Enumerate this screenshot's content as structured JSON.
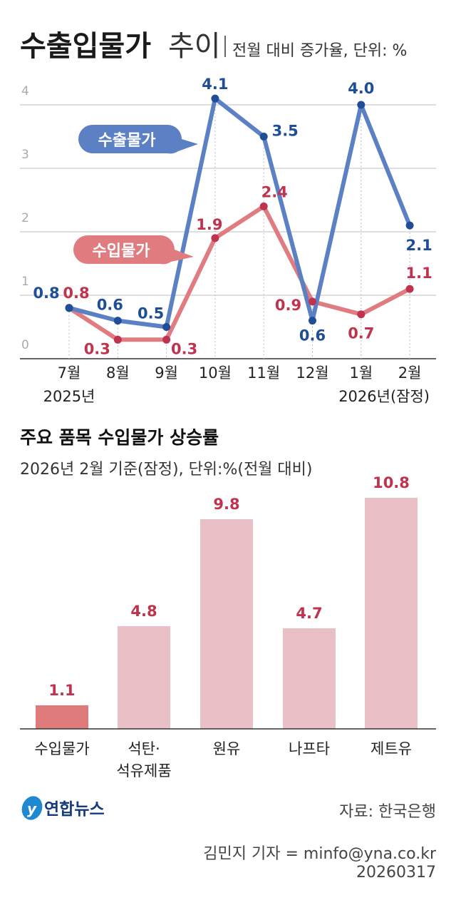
{
  "header": {
    "title_bold": "수출입물가",
    "title_light": "추이",
    "subtitle": "전월 대비 증가율, 단위: %"
  },
  "chart_data": [
    {
      "type": "line",
      "categories": [
        "7월",
        "8월",
        "9월",
        "10월",
        "11월",
        "12월",
        "1월",
        "2월"
      ],
      "year_labels": {
        "0": "2025년",
        "7": "2026년(잠정)"
      },
      "ylim": [
        0,
        4.4
      ],
      "yticks": [
        0,
        1,
        2,
        3,
        4
      ],
      "grid": true,
      "series": [
        {
          "name": "수출물가",
          "values": [
            0.8,
            0.6,
            0.5,
            4.1,
            3.5,
            0.6,
            4.0,
            2.1
          ],
          "color": "#5b80c4",
          "label_color": "#1f4e96"
        },
        {
          "name": "수입물가",
          "values": [
            0.8,
            0.3,
            0.3,
            1.9,
            2.4,
            0.9,
            0.7,
            1.1
          ],
          "color": "#e07b80",
          "label_color": "#c0334f"
        }
      ]
    },
    {
      "type": "bar",
      "title": "주요 품목 수입물가 상승률",
      "subtitle": "2026년 2월 기준(잠정), 단위:%(전월 대비)",
      "categories": [
        "수입물가",
        "석탄·\n석유제품",
        "원유",
        "나프타",
        "제트유"
      ],
      "values": [
        1.1,
        4.8,
        9.8,
        4.7,
        10.8
      ],
      "colors": [
        "#e07b7b",
        "#e8c0c6",
        "#e8c0c6",
        "#e8c0c6",
        "#e8c0c6"
      ],
      "label_color": "#c0334f",
      "ylim": [
        0,
        10.8
      ]
    }
  ],
  "footer": {
    "logo": "연합뉴스",
    "source": "자료: 한국은행",
    "credit": "김민지 기자 = minfo@yna.co.kr",
    "date": "20260317"
  }
}
